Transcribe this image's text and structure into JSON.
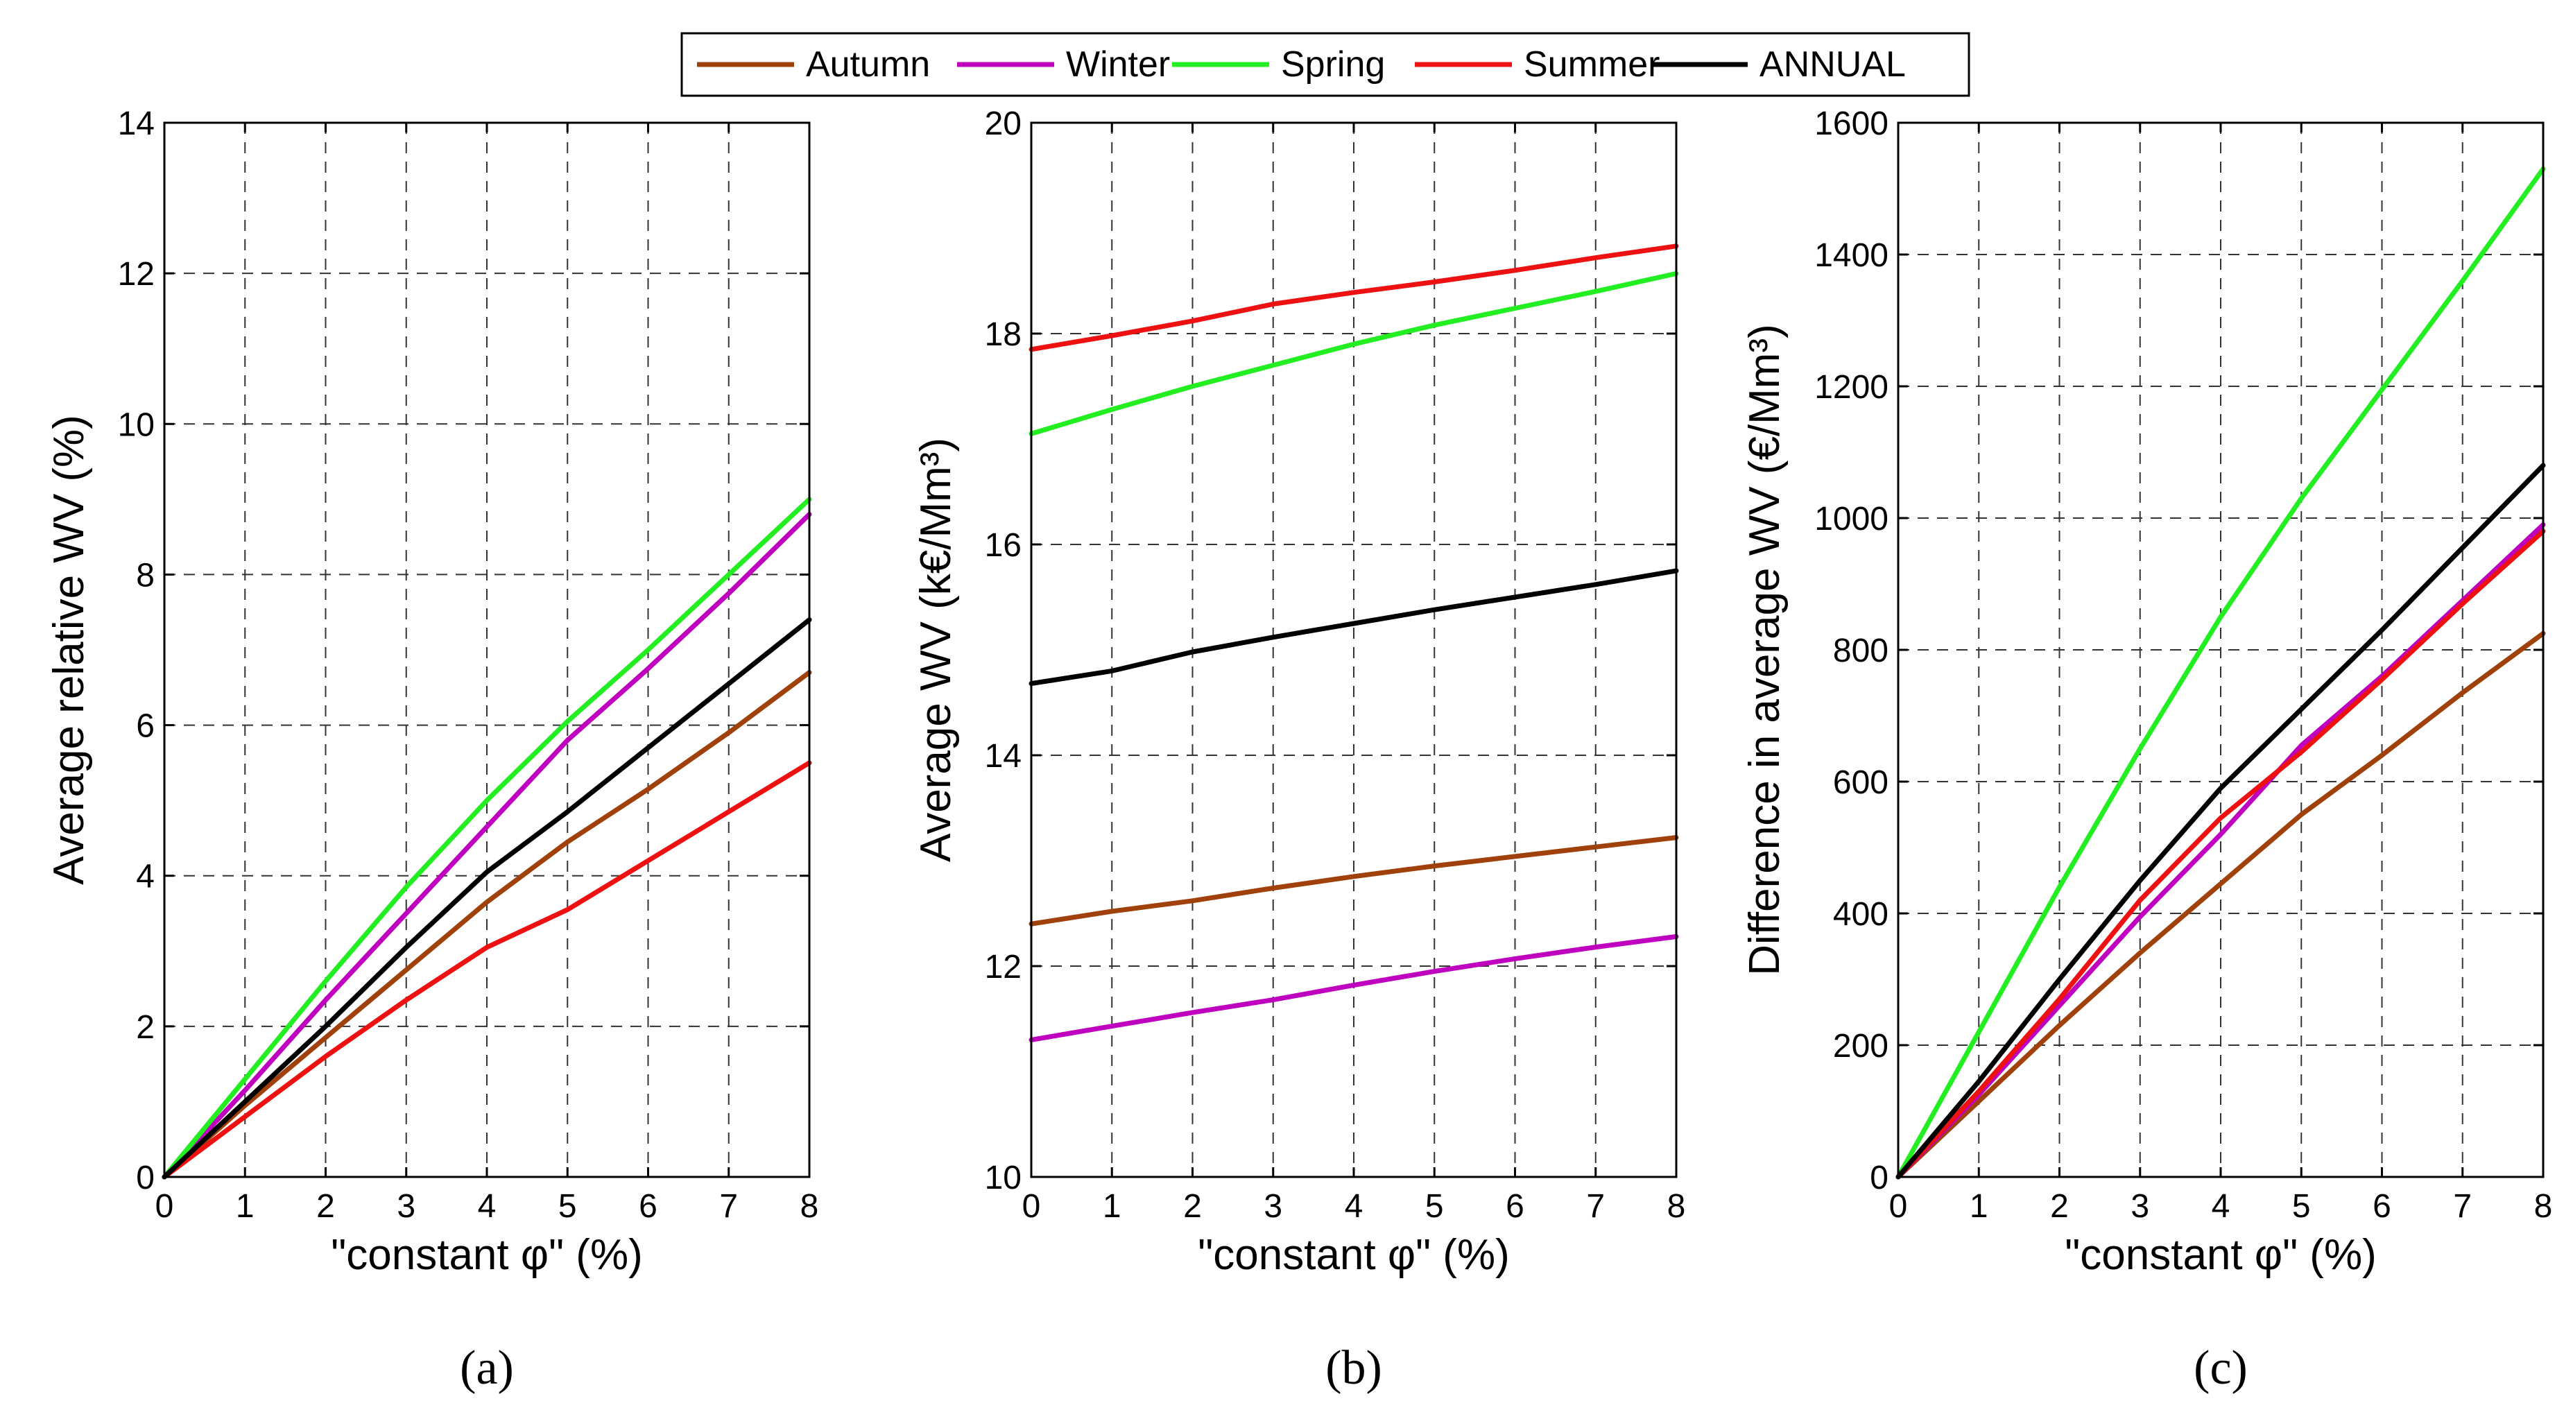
{
  "legend": [
    {
      "name": "Autumn",
      "color": "#A0400A"
    },
    {
      "name": "Winter",
      "color": "#BF00BF"
    },
    {
      "name": "Spring",
      "color": "#22EE22"
    },
    {
      "name": "Summer",
      "color": "#EE1111"
    },
    {
      "name": "ANNUAL",
      "color": "#000000"
    }
  ],
  "chart_data": [
    {
      "type": "line",
      "panel_label": "(a)",
      "xlabel": "\"constant φ\" (%)",
      "ylabel": "Average relative WV (%)",
      "xlim": [
        0,
        8
      ],
      "ylim": [
        0,
        14
      ],
      "xticks": [
        0,
        1,
        2,
        3,
        4,
        5,
        6,
        7,
        8
      ],
      "yticks": [
        0,
        2,
        4,
        6,
        8,
        10,
        12,
        14
      ],
      "grid": true,
      "x": [
        0,
        1,
        2,
        3,
        4,
        5,
        6,
        7,
        8
      ],
      "series": [
        {
          "name": "Autumn",
          "values": [
            0,
            0.95,
            1.85,
            2.75,
            3.65,
            4.45,
            5.15,
            5.9,
            6.7
          ]
        },
        {
          "name": "Winter",
          "values": [
            0,
            1.15,
            2.35,
            3.5,
            4.65,
            5.8,
            6.75,
            7.75,
            8.8
          ]
        },
        {
          "name": "Spring",
          "values": [
            0,
            1.3,
            2.6,
            3.85,
            5.0,
            6.05,
            7.0,
            8.0,
            9.0
          ]
        },
        {
          "name": "Summer",
          "values": [
            0,
            0.8,
            1.6,
            2.35,
            3.05,
            3.55,
            4.2,
            4.85,
            5.5
          ]
        },
        {
          "name": "ANNUAL",
          "values": [
            0,
            1.0,
            2.0,
            3.05,
            4.05,
            4.85,
            5.7,
            6.55,
            7.4
          ]
        }
      ]
    },
    {
      "type": "line",
      "panel_label": "(b)",
      "xlabel": "\"constant φ\" (%)",
      "ylabel": "Average WV (k€/Mm³)",
      "xlim": [
        0,
        8
      ],
      "ylim": [
        10,
        20
      ],
      "xticks": [
        0,
        1,
        2,
        3,
        4,
        5,
        6,
        7,
        8
      ],
      "yticks": [
        10,
        12,
        14,
        16,
        18,
        20
      ],
      "grid": true,
      "x": [
        0,
        1,
        2,
        3,
        4,
        5,
        6,
        7,
        8
      ],
      "series": [
        {
          "name": "Autumn",
          "values": [
            12.4,
            12.52,
            12.62,
            12.74,
            12.85,
            12.95,
            13.04,
            13.13,
            13.22
          ]
        },
        {
          "name": "Winter",
          "values": [
            11.3,
            11.43,
            11.56,
            11.68,
            11.82,
            11.95,
            12.07,
            12.18,
            12.28
          ]
        },
        {
          "name": "Spring",
          "values": [
            17.05,
            17.28,
            17.5,
            17.7,
            17.9,
            18.08,
            18.24,
            18.4,
            18.57
          ]
        },
        {
          "name": "Summer",
          "values": [
            17.85,
            17.98,
            18.12,
            18.28,
            18.39,
            18.49,
            18.6,
            18.72,
            18.83
          ]
        },
        {
          "name": "ANNUAL",
          "values": [
            14.68,
            14.8,
            14.98,
            15.12,
            15.25,
            15.38,
            15.5,
            15.62,
            15.75
          ]
        }
      ]
    },
    {
      "type": "line",
      "panel_label": "(c)",
      "xlabel": "\"constant φ\" (%)",
      "ylabel": "Difference in average WV (€/Mm³)",
      "xlim": [
        0,
        8
      ],
      "ylim": [
        0,
        1600
      ],
      "xticks": [
        0,
        1,
        2,
        3,
        4,
        5,
        6,
        7,
        8
      ],
      "yticks": [
        0,
        200,
        400,
        600,
        800,
        1000,
        1200,
        1400,
        1600
      ],
      "grid": true,
      "x": [
        0,
        1,
        2,
        3,
        4,
        5,
        6,
        7,
        8
      ],
      "series": [
        {
          "name": "Autumn",
          "values": [
            0,
            115,
            230,
            340,
            445,
            550,
            640,
            735,
            825
          ]
        },
        {
          "name": "Winter",
          "values": [
            0,
            125,
            260,
            395,
            520,
            655,
            760,
            875,
            990
          ]
        },
        {
          "name": "Spring",
          "values": [
            0,
            220,
            440,
            650,
            850,
            1030,
            1195,
            1360,
            1530
          ]
        },
        {
          "name": "Summer",
          "values": [
            0,
            130,
            270,
            420,
            545,
            645,
            755,
            870,
            980
          ]
        },
        {
          "name": "ANNUAL",
          "values": [
            0,
            145,
            300,
            450,
            590,
            710,
            830,
            955,
            1080
          ]
        }
      ]
    }
  ]
}
